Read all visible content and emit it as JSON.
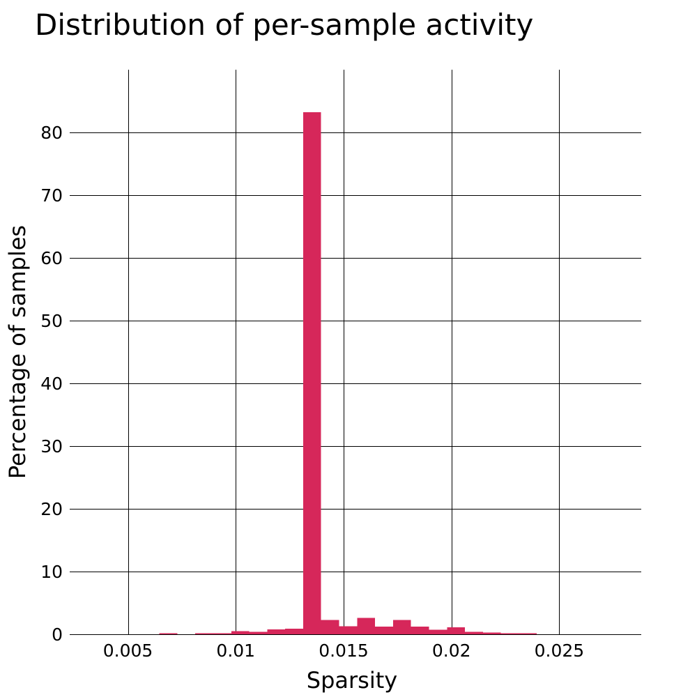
{
  "chart_data": {
    "type": "bar",
    "title": "Distribution of per-sample activity",
    "xlabel": "Sparsity",
    "ylabel": "Percentage of samples",
    "xlim": [
      0.0023,
      0.0288
    ],
    "ylim": [
      0,
      90
    ],
    "x_ticks": [
      0.005,
      0.01,
      0.015,
      0.02,
      0.025
    ],
    "x_tick_labels": [
      "0.005",
      "0.01",
      "0.015",
      "0.02",
      "0.025"
    ],
    "y_ticks": [
      0,
      10,
      20,
      30,
      40,
      50,
      60,
      70,
      80
    ],
    "y_tick_labels": [
      "0",
      "10",
      "20",
      "30",
      "40",
      "50",
      "60",
      "70",
      "80"
    ],
    "grid": true,
    "bar_color": "#d6275a",
    "bin_width": 0.000833,
    "bins": [
      {
        "x0": 0.006458,
        "x1": 0.007292,
        "value": 0.1
      },
      {
        "x0": 0.007292,
        "x1": 0.008125,
        "value": 0.0
      },
      {
        "x0": 0.008125,
        "x1": 0.008958,
        "value": 0.1
      },
      {
        "x0": 0.008958,
        "x1": 0.009792,
        "value": 0.1
      },
      {
        "x0": 0.009792,
        "x1": 0.010625,
        "value": 0.5
      },
      {
        "x0": 0.010625,
        "x1": 0.011458,
        "value": 0.4
      },
      {
        "x0": 0.011458,
        "x1": 0.012292,
        "value": 0.8
      },
      {
        "x0": 0.012292,
        "x1": 0.013125,
        "value": 0.9
      },
      {
        "x0": 0.013125,
        "x1": 0.013958,
        "value": 83.2
      },
      {
        "x0": 0.013958,
        "x1": 0.014792,
        "value": 2.3
      },
      {
        "x0": 0.014792,
        "x1": 0.015625,
        "value": 1.3
      },
      {
        "x0": 0.015625,
        "x1": 0.016458,
        "value": 2.6
      },
      {
        "x0": 0.016458,
        "x1": 0.017292,
        "value": 1.2
      },
      {
        "x0": 0.017292,
        "x1": 0.018125,
        "value": 2.3
      },
      {
        "x0": 0.018125,
        "x1": 0.018958,
        "value": 1.2
      },
      {
        "x0": 0.018958,
        "x1": 0.019792,
        "value": 0.7
      },
      {
        "x0": 0.019792,
        "x1": 0.020625,
        "value": 1.1
      },
      {
        "x0": 0.020625,
        "x1": 0.021458,
        "value": 0.4
      },
      {
        "x0": 0.021458,
        "x1": 0.022292,
        "value": 0.3
      },
      {
        "x0": 0.022292,
        "x1": 0.023125,
        "value": 0.1
      },
      {
        "x0": 0.023125,
        "x1": 0.023958,
        "value": 0.1
      }
    ]
  }
}
